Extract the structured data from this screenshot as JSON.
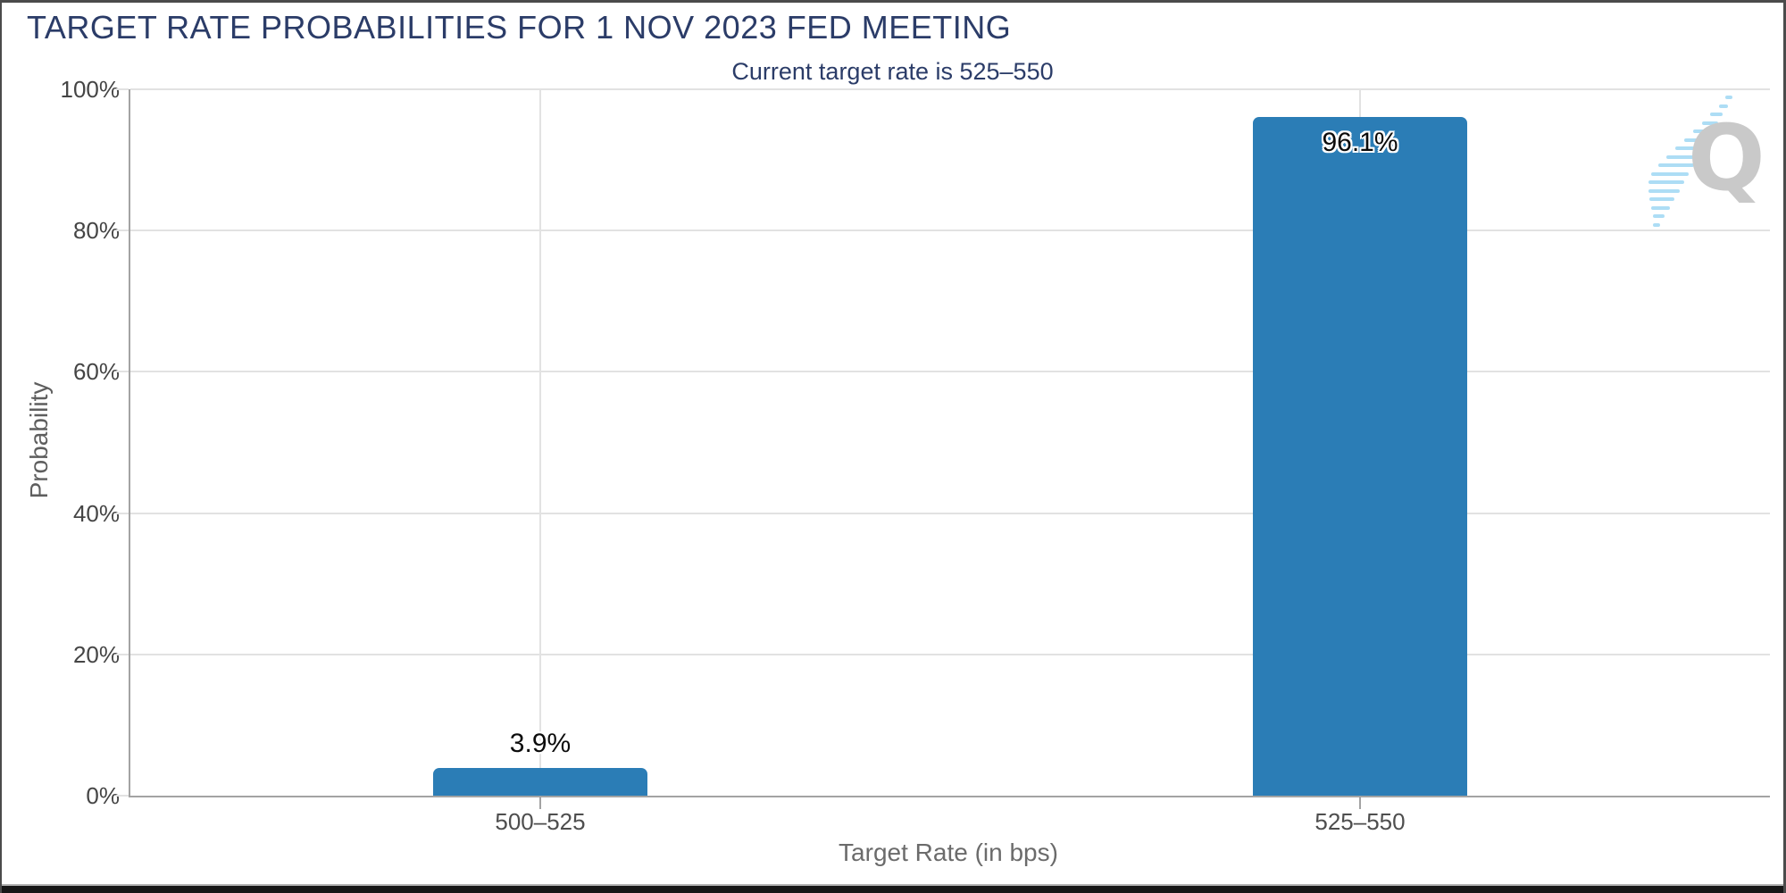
{
  "header": {
    "title": "TARGET RATE PROBABILITIES FOR 1 NOV 2023 FED MEETING",
    "subtitle": "Current target rate is 525–550"
  },
  "chart_data": {
    "type": "bar",
    "title": "TARGET RATE PROBABILITIES FOR 1 NOV 2023 FED MEETING",
    "subtitle": "Current target rate is 525–550",
    "categories": [
      "500–525",
      "525–550"
    ],
    "values": [
      3.9,
      96.1
    ],
    "value_labels": [
      "3.9%",
      "96.1%"
    ],
    "xlabel": "Target Rate (in bps)",
    "ylabel": "Probability",
    "ylim": [
      0,
      100
    ],
    "ytick_values": [
      0,
      20,
      40,
      60,
      80,
      100
    ],
    "ytick_labels": [
      "0%",
      "20%",
      "40%",
      "60%",
      "80%",
      "100%"
    ],
    "grid": true,
    "legend": false,
    "bar_color": "#2b7db6"
  },
  "watermark": {
    "letter": "Q"
  },
  "colors": {
    "bar-color": "#2b7db6",
    "title-color": "#2b3c68",
    "grid-color": "#e2e2e2",
    "axis-line": "#a3a3a3",
    "tick-color": "#454545",
    "frame-border": "#4b4b4b",
    "bottom-bar": "#171717",
    "wm-q": "#c4c4c4",
    "wm-dash": "#a5daf4"
  }
}
